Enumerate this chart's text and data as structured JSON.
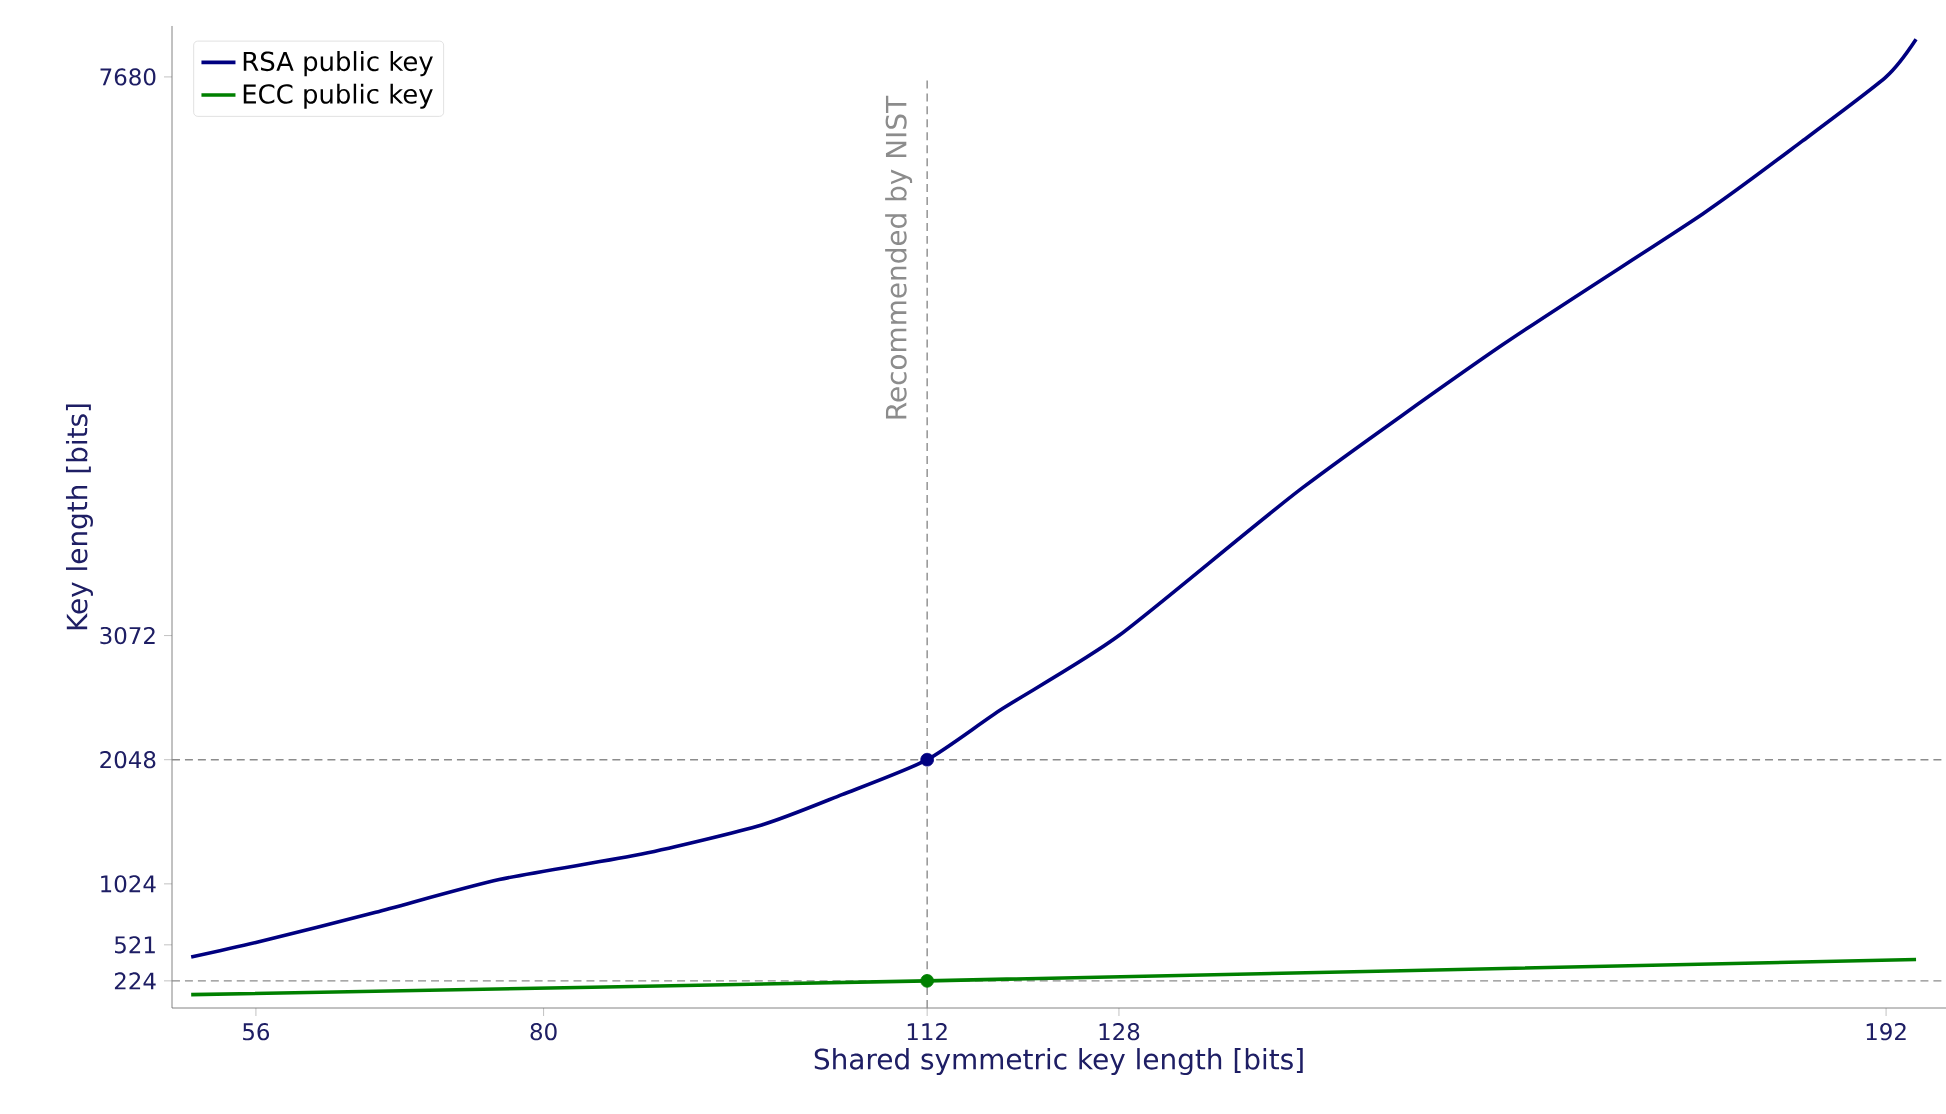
{
  "chart_data": {
    "type": "line",
    "xlabel": "Shared symmetric key length [bits]",
    "ylabel": "Key length [bits]",
    "xlim": [
      49,
      197
    ],
    "xticks": [
      56,
      80,
      112,
      128,
      192
    ],
    "ylim": [
      0,
      8100
    ],
    "yticks": [
      224,
      521,
      1024,
      2048,
      3072,
      7680
    ],
    "grid": false,
    "legend": "top left",
    "marker": "none",
    "line_style": "solid",
    "series": [
      {
        "name": "RSA public key",
        "color": "#000080",
        "x": [
          50.6,
          56,
          66,
          76.3,
          88.2,
          98.2,
          104.9,
          112,
          118.3,
          128,
          143.3,
          160,
          176.7,
          185,
          192,
          194.5
        ],
        "values": [
          420,
          540,
          790,
          1060,
          1270,
          1510,
          1760,
          2048,
          2470,
          3072,
          4290,
          5470,
          6550,
          7150,
          7680,
          7990
        ]
      },
      {
        "name": "ECC public key",
        "color": "#008000",
        "x": [
          50.6,
          112,
          194.5
        ],
        "values": [
          110,
          224,
          400
        ]
      },
      {
        "type": "scatter",
        "marker": "circle",
        "color": "#000080",
        "x": [
          112
        ],
        "values": [
          2048
        ]
      },
      {
        "type": "scatter",
        "marker": "circle",
        "color": "#008000",
        "x": [
          112
        ],
        "values": [
          224
        ]
      }
    ],
    "ref_lines": [
      {
        "axis": "x",
        "value": 112,
        "label": "Recommended by NIST",
        "color": "#8c8c8c",
        "line_style": "dashed"
      },
      {
        "axis": "y",
        "value": 2048,
        "label": null,
        "color": "#8c8c8c",
        "line_style": "dashed"
      },
      {
        "axis": "y",
        "value": 224,
        "label": null,
        "color": "#8c8c8c",
        "line_style": "dashed"
      }
    ]
  }
}
